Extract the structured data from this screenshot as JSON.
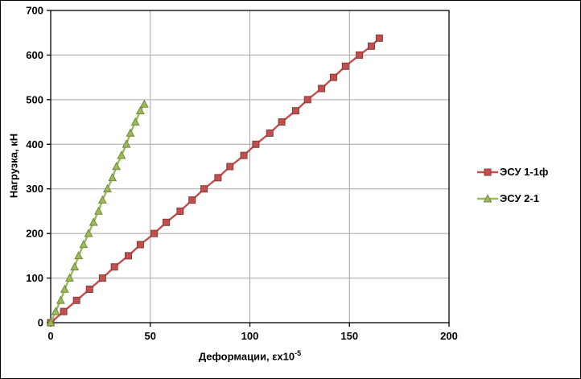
{
  "chart_data": {
    "type": "line",
    "title": "",
    "xlabel": "Деформации, εx10⁻⁵",
    "xlabel_base": "Деформации, εx10",
    "xlabel_exp": "-5",
    "ylabel": "Нагрузка, кН",
    "xlim": [
      0,
      200
    ],
    "ylim": [
      0,
      700
    ],
    "x_ticks": [
      0,
      50,
      100,
      150,
      200
    ],
    "y_ticks": [
      0,
      100,
      200,
      300,
      400,
      500,
      600,
      700
    ],
    "grid": true,
    "grid_color": "#A6A6A6",
    "plot_border_color": "#000000",
    "legend_position": "right",
    "series": [
      {
        "name": "ЭСУ 1-1ф",
        "color": "#C0504D",
        "edge": "#8C3836",
        "marker": "square",
        "x": [
          0,
          6.5,
          13,
          19.5,
          26,
          32,
          39,
          45,
          52,
          58,
          65,
          71,
          77,
          84,
          90,
          97,
          103,
          110,
          116,
          123,
          129,
          136,
          142,
          148,
          155,
          161,
          165
        ],
        "y": [
          0,
          25,
          50,
          75,
          100,
          125,
          150,
          175,
          200,
          225,
          250,
          275,
          300,
          325,
          350,
          375,
          400,
          425,
          450,
          475,
          500,
          525,
          550,
          575,
          600,
          620,
          638
        ]
      },
      {
        "name": "ЭСУ 2-1",
        "color": "#9BBB59",
        "edge": "#71893F",
        "marker": "triangle",
        "x": [
          0,
          2.5,
          5,
          7,
          9.5,
          12,
          14,
          16.5,
          19,
          21.5,
          24,
          26,
          28.5,
          31,
          33,
          35.5,
          38,
          40,
          42.5,
          45,
          47
        ],
        "y": [
          0,
          25,
          50,
          75,
          100,
          125,
          150,
          175,
          200,
          225,
          250,
          275,
          300,
          325,
          350,
          375,
          400,
          425,
          450,
          475,
          490
        ]
      }
    ]
  }
}
